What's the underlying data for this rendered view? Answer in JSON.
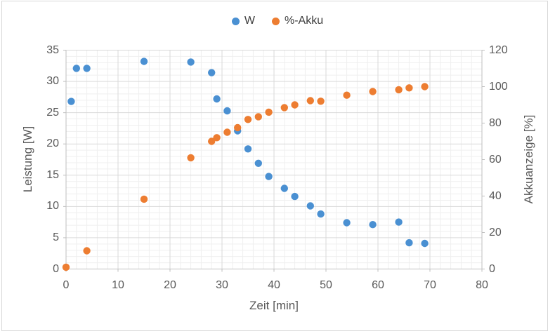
{
  "colors": {
    "series_w": "#4A90D2",
    "series_akku": "#ED7D31",
    "text": "#595959",
    "grid_major": "#D9D9D9",
    "grid_minor": "#EFEFEF",
    "axis_line": "#BFBFBF",
    "frame_border": "#D7D7D7"
  },
  "legend": {
    "items": [
      {
        "label": "W",
        "color": "#4A90D2"
      },
      {
        "label": "%-Akku",
        "color": "#ED7D31"
      }
    ]
  },
  "chart_data": {
    "type": "scatter",
    "title": "",
    "xlabel": "Zeit [min]",
    "ylabel_left": "Leistung [W]",
    "ylabel_right": "Akkuanzeige [%]",
    "xlim": [
      0,
      80
    ],
    "ylim_left": [
      0,
      35
    ],
    "ylim_right": [
      0,
      120
    ],
    "x_ticks": [
      0,
      10,
      20,
      30,
      40,
      50,
      60,
      70,
      80
    ],
    "y_ticks_left": [
      0,
      5,
      10,
      15,
      20,
      25,
      30,
      35
    ],
    "y_ticks_right": [
      0,
      20,
      40,
      60,
      80,
      100,
      120
    ],
    "grid": {
      "major": true,
      "minor": true,
      "minor_x_step_min": 2,
      "minor_y_step_watt": 1
    },
    "legend_position": "top-center",
    "series": [
      {
        "name": "W",
        "axis": "left",
        "unit": "W",
        "color": "#4A90D2",
        "points": [
          [
            1,
            26.8
          ],
          [
            2,
            32.1
          ],
          [
            4,
            32.1
          ],
          [
            15,
            33.2
          ],
          [
            24,
            33.1
          ],
          [
            28,
            31.4
          ],
          [
            29,
            27.2
          ],
          [
            31,
            25.3
          ],
          [
            33,
            22.1
          ],
          [
            35,
            19.2
          ],
          [
            37,
            16.9
          ],
          [
            39,
            14.8
          ],
          [
            42,
            12.9
          ],
          [
            44,
            11.6
          ],
          [
            47,
            10.1
          ],
          [
            49,
            8.8
          ],
          [
            54,
            7.4
          ],
          [
            59,
            7.1
          ],
          [
            64,
            7.5
          ],
          [
            66,
            4.2
          ],
          [
            69,
            4.1
          ]
        ]
      },
      {
        "name": "%-Akku",
        "axis": "right",
        "unit": "%",
        "color": "#ED7D31",
        "points": [
          [
            0,
            1
          ],
          [
            4,
            10
          ],
          [
            15,
            38.3
          ],
          [
            24,
            61
          ],
          [
            28,
            70
          ],
          [
            29,
            72
          ],
          [
            31,
            75
          ],
          [
            33,
            77.5
          ],
          [
            35,
            82
          ],
          [
            37,
            83.5
          ],
          [
            39,
            86
          ],
          [
            42,
            88.5
          ],
          [
            44,
            90
          ],
          [
            47,
            92.3
          ],
          [
            49,
            92
          ],
          [
            54,
            95.3
          ],
          [
            59,
            97.3
          ],
          [
            64,
            98.3
          ],
          [
            66,
            99.3
          ],
          [
            69,
            100
          ]
        ]
      }
    ]
  }
}
